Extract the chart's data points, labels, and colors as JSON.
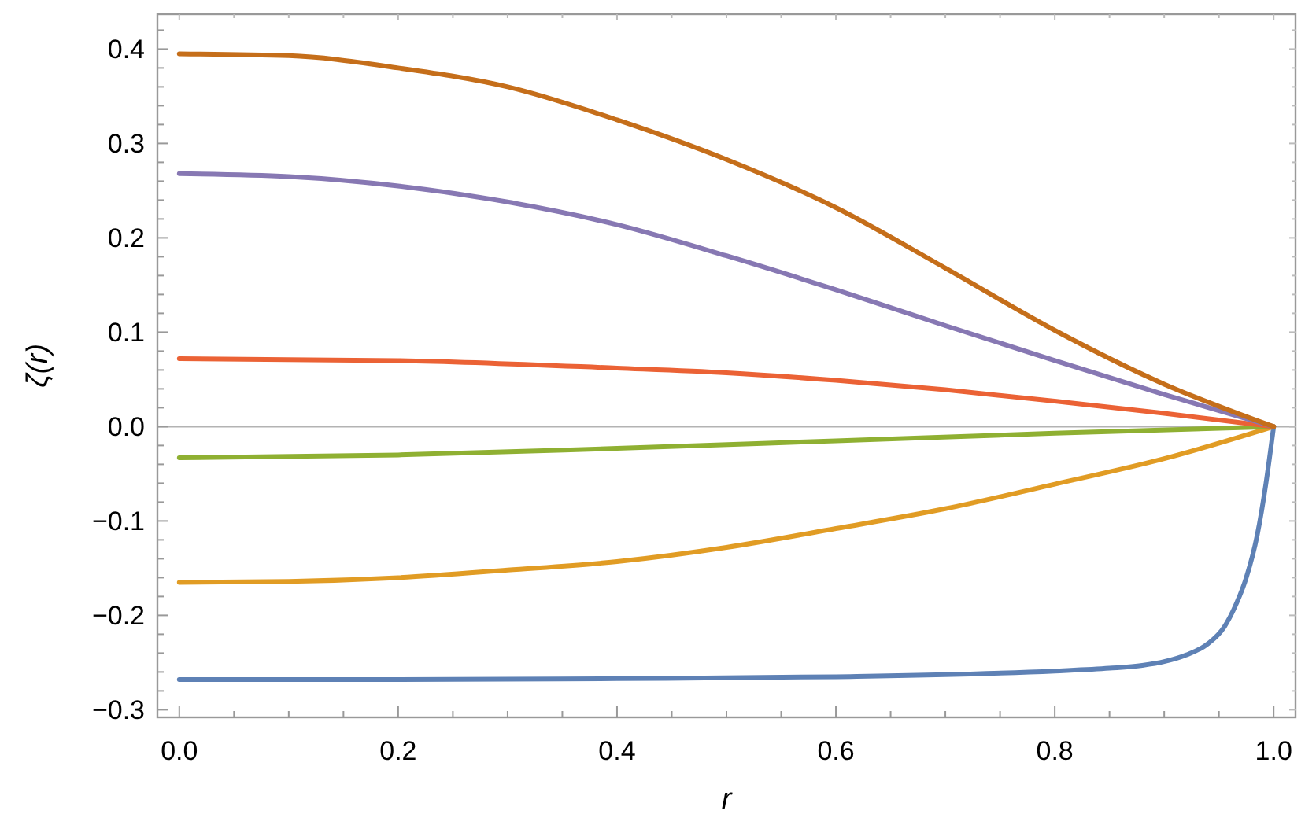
{
  "chart_data": {
    "type": "line",
    "xlabel": "r",
    "ylabel": "ζ(r)",
    "xlim": [
      -0.02,
      1.02
    ],
    "ylim": [
      -0.308,
      0.437
    ],
    "xticks": [
      {
        "value": 0.05,
        "label": null
      },
      0.2,
      {
        "value": 0.1,
        "label": null
      },
      {
        "value": 0.15,
        "label": null
      },
      {
        "value": 0.25,
        "label": null
      },
      {
        "value": 0.3,
        "label": null
      },
      {
        "value": 0.35,
        "label": null
      },
      0.4,
      {
        "value": 0.45,
        "label": null
      },
      {
        "value": 0.5,
        "label": null
      },
      {
        "value": 0.55,
        "label": null
      },
      0.6,
      {
        "value": 0.65,
        "label": null
      },
      {
        "value": 0.7,
        "label": null
      },
      {
        "value": 0.75,
        "label": null
      },
      0.8,
      {
        "value": 0.85,
        "label": null
      },
      {
        "value": 0.9,
        "label": null
      },
      {
        "value": 0.95,
        "label": null
      },
      {
        "value": 0,
        "label": "0.0"
      },
      {
        "value": 1,
        "label": "1.0"
      }
    ],
    "yticks": [
      {
        "value": -0.3,
        "label": "−0.3"
      },
      {
        "value": -0.2,
        "label": "−0.2"
      },
      {
        "value": -0.1,
        "label": "−0.1"
      },
      {
        "value": 0,
        "label": "0.0"
      },
      0.1,
      0.2,
      0.3,
      0.4,
      {
        "value": -0.28,
        "label": null
      },
      {
        "value": -0.26,
        "label": null
      },
      {
        "value": -0.24,
        "label": null
      },
      {
        "value": -0.22,
        "label": null
      },
      {
        "value": -0.18,
        "label": null
      },
      {
        "value": -0.16,
        "label": null
      },
      {
        "value": -0.14,
        "label": null
      },
      {
        "value": -0.12,
        "label": null
      },
      {
        "value": -0.08,
        "label": null
      },
      {
        "value": -0.06,
        "label": null
      },
      {
        "value": -0.04,
        "label": null
      },
      {
        "value": -0.02,
        "label": null
      },
      {
        "value": 0.02,
        "label": null
      },
      {
        "value": 0.04,
        "label": null
      },
      {
        "value": 0.06,
        "label": null
      },
      {
        "value": 0.08,
        "label": null
      },
      {
        "value": 0.12,
        "label": null
      },
      {
        "value": 0.14,
        "label": null
      },
      {
        "value": 0.16,
        "label": null
      },
      {
        "value": 0.18,
        "label": null
      },
      {
        "value": 0.22,
        "label": null
      },
      {
        "value": 0.24,
        "label": null
      },
      {
        "value": 0.26,
        "label": null
      },
      {
        "value": 0.28,
        "label": null
      },
      {
        "value": 0.32,
        "label": null
      },
      {
        "value": 0.34,
        "label": null
      },
      {
        "value": 0.36,
        "label": null
      },
      {
        "value": 0.38,
        "label": null
      },
      {
        "value": 0.42,
        "label": null
      }
    ],
    "ref_lines": [
      {
        "axis": "y",
        "value": 0,
        "color": "#b3b3b3"
      }
    ],
    "grid": false,
    "marker": "none",
    "line_style": "solid",
    "series": [
      {
        "color": "#5e81b5",
        "x": [
          0,
          0.2,
          0.4,
          0.6,
          0.8,
          0.85,
          0.88,
          0.9,
          0.92,
          0.94,
          0.955,
          0.965,
          0.975,
          0.985,
          0.993,
          1
        ],
        "values": [
          -0.268,
          -0.268,
          -0.267,
          -0.265,
          -0.259,
          -0.256,
          -0.253,
          -0.249,
          -0.242,
          -0.23,
          -0.212,
          -0.19,
          -0.16,
          -0.115,
          -0.06,
          0
        ]
      },
      {
        "color": "#e19c24",
        "x": [
          0,
          0.1,
          0.2,
          0.3,
          0.4,
          0.5,
          0.6,
          0.7,
          0.8,
          0.9,
          1
        ],
        "values": [
          -0.165,
          -0.164,
          -0.16,
          -0.152,
          -0.143,
          -0.128,
          -0.108,
          -0.087,
          -0.061,
          -0.034,
          0
        ]
      },
      {
        "color": "#8fb032",
        "x": [
          0,
          0.2,
          0.4,
          0.6,
          0.8,
          1
        ],
        "values": [
          -0.033,
          -0.03,
          -0.023,
          -0.015,
          -0.007,
          0
        ]
      },
      {
        "color": "#eb6235",
        "x": [
          0,
          0.2,
          0.4,
          0.5,
          0.6,
          0.7,
          0.8,
          0.9,
          1
        ],
        "values": [
          0.072,
          0.07,
          0.062,
          0.057,
          0.049,
          0.039,
          0.027,
          0.014,
          0
        ]
      },
      {
        "color": "#8778b3",
        "x": [
          0,
          0.1,
          0.2,
          0.3,
          0.4,
          0.5,
          0.6,
          0.7,
          0.8,
          0.9,
          1
        ],
        "values": [
          0.268,
          0.265,
          0.255,
          0.238,
          0.214,
          0.181,
          0.145,
          0.107,
          0.07,
          0.034,
          0
        ]
      },
      {
        "color": "#c56e1a",
        "x": [
          0,
          0.1,
          0.2,
          0.3,
          0.4,
          0.5,
          0.6,
          0.7,
          0.8,
          0.9,
          1
        ],
        "values": [
          0.395,
          0.393,
          0.38,
          0.36,
          0.325,
          0.283,
          0.232,
          0.168,
          0.102,
          0.045,
          0
        ]
      }
    ]
  }
}
